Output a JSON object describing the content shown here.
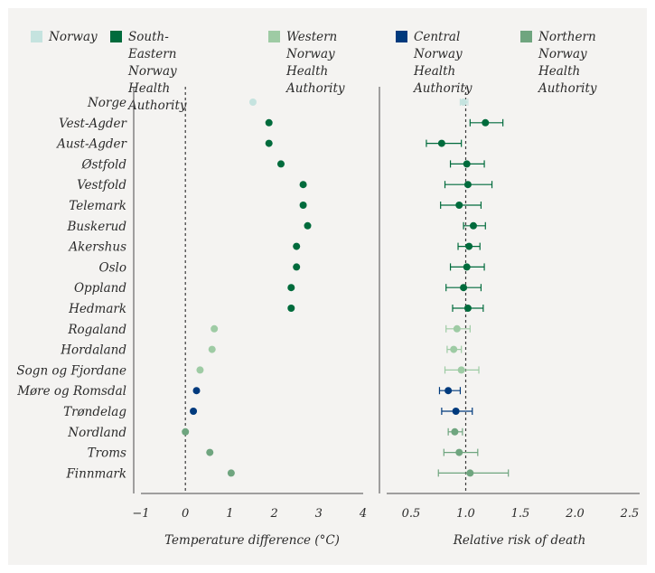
{
  "colors": {
    "Norway": "#c5e3df",
    "South-Eastern Norway Health Authority": "#006b3c",
    "Western Norway Health Authority": "#9ecba4",
    "Central Norway Health Authority": "#003a7d",
    "Northern Norway Health Authority": "#6fa57f"
  },
  "legend": [
    {
      "region": "Norway",
      "lines": [
        "Norway"
      ]
    },
    {
      "region": "South-Eastern Norway Health Authority",
      "lines": [
        "South-Eastern Norway",
        "Health Authority"
      ]
    },
    {
      "region": "Western Norway Health Authority",
      "lines": [
        "Western Norway",
        "Health Authority"
      ]
    },
    {
      "region": "Central Norway Health Authority",
      "lines": [
        "Central Norway",
        "Health Authority"
      ]
    },
    {
      "region": "Northern Norway Health Authority",
      "lines": [
        "Northern Norway",
        "Health Authority"
      ]
    }
  ],
  "chart_data": [
    {
      "type": "scatter",
      "xlabel": "Temperature difference (°C)",
      "xlim": [
        -1,
        4
      ],
      "xticks": [
        "−1",
        "0",
        "1",
        "2",
        "3",
        "4"
      ],
      "reference_line": 0,
      "categories": [
        "Norge",
        "Vest-Agder",
        "Aust-Agder",
        "Østfold",
        "Vestfold",
        "Telemark",
        "Buskerud",
        "Akershus",
        "Oslo",
        "Oppland",
        "Hedmark",
        "Rogaland",
        "Hordaland",
        "Sogn og Fjordane",
        "Møre og Romsdal",
        "Trøndelag",
        "Nordland",
        "Troms",
        "Finnmark"
      ],
      "region": [
        "Norway",
        "South-Eastern Norway Health Authority",
        "South-Eastern Norway Health Authority",
        "South-Eastern Norway Health Authority",
        "South-Eastern Norway Health Authority",
        "South-Eastern Norway Health Authority",
        "South-Eastern Norway Health Authority",
        "South-Eastern Norway Health Authority",
        "South-Eastern Norway Health Authority",
        "South-Eastern Norway Health Authority",
        "South-Eastern Norway Health Authority",
        "Western Norway Health Authority",
        "Western Norway Health Authority",
        "Western Norway Health Authority",
        "Central Norway Health Authority",
        "Central Norway Health Authority",
        "Northern Norway Health Authority",
        "Northern Norway Health Authority",
        "Northern Norway Health Authority"
      ],
      "values": [
        1.52,
        1.88,
        1.88,
        2.15,
        2.65,
        2.65,
        2.75,
        2.5,
        2.5,
        2.38,
        2.38,
        0.65,
        0.6,
        0.33,
        0.25,
        0.18,
        0.0,
        0.55,
        1.03
      ]
    },
    {
      "type": "scatter",
      "xlabel": "Relative risk of death",
      "xlim": [
        0.5,
        2.5
      ],
      "xticks": [
        "0.5",
        "1.0",
        "1.5",
        "2.0",
        "2.5"
      ],
      "reference_line": 1.0,
      "categories": [
        "Norge",
        "Vest-Agder",
        "Aust-Agder",
        "Østfold",
        "Vestfold",
        "Telemark",
        "Buskerud",
        "Akershus",
        "Oslo",
        "Oppland",
        "Hedmark",
        "Rogaland",
        "Hordaland",
        "Sogn og Fjordane",
        "Møre og Romsdal",
        "Trøndelag",
        "Nordland",
        "Troms",
        "Finnmark"
      ],
      "values": [
        0.98,
        1.18,
        0.78,
        1.01,
        1.02,
        0.94,
        1.07,
        1.03,
        1.01,
        0.98,
        1.02,
        0.92,
        0.89,
        0.96,
        0.84,
        0.91,
        0.9,
        0.94,
        1.04
      ],
      "ci_low": [
        0.95,
        1.04,
        0.64,
        0.86,
        0.81,
        0.77,
        0.98,
        0.93,
        0.86,
        0.82,
        0.88,
        0.82,
        0.83,
        0.81,
        0.76,
        0.78,
        0.84,
        0.8,
        0.75
      ],
      "ci_high": [
        1.02,
        1.34,
        0.96,
        1.17,
        1.24,
        1.14,
        1.18,
        1.13,
        1.17,
        1.14,
        1.16,
        1.04,
        0.96,
        1.12,
        0.95,
        1.06,
        0.97,
        1.11,
        1.39
      ]
    }
  ]
}
